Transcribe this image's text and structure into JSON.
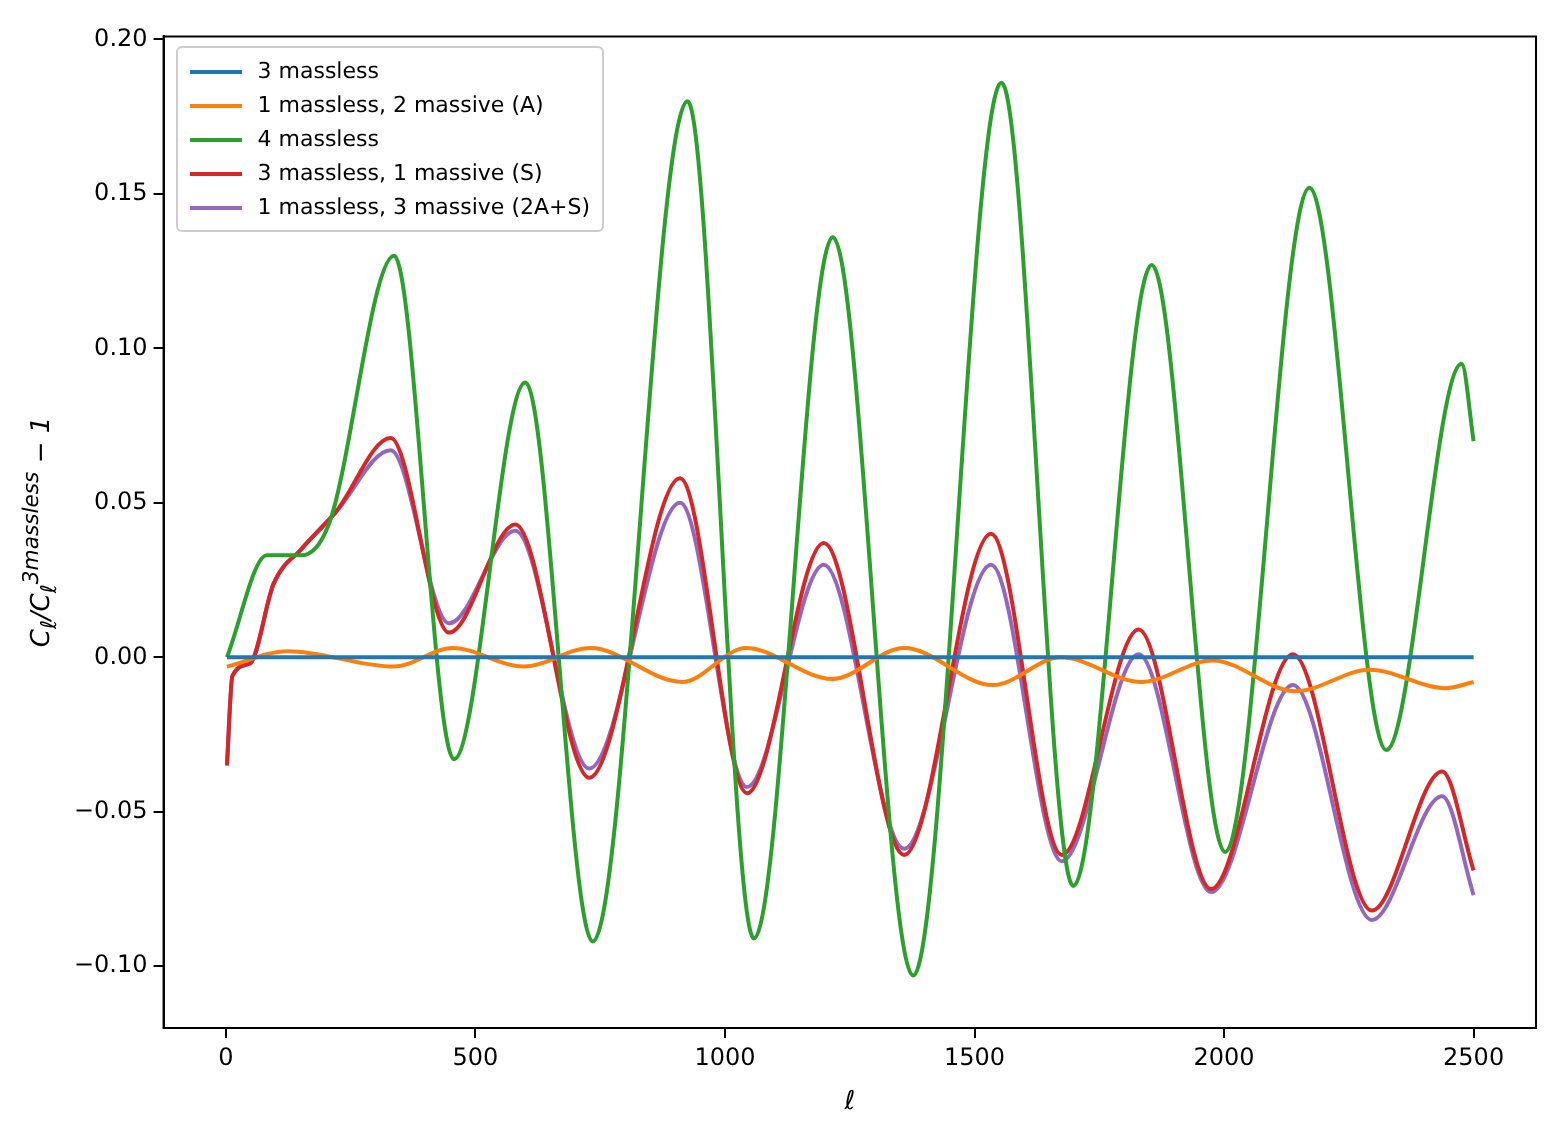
{
  "chart_data": {
    "type": "line",
    "xlabel": "ℓ",
    "ylabel": "C$_{ℓ}$/C$_{ℓ}$$^{3massless}$ − 1",
    "xlim": [
      -125,
      2625
    ],
    "ylim": [
      -0.12,
      0.201
    ],
    "xticks": [
      0,
      500,
      1000,
      1500,
      2000,
      2500
    ],
    "yticks": [
      {
        "value": -0.1,
        "label": "−0.10"
      },
      {
        "value": -0.05,
        "label": "−0.05"
      },
      {
        "value": 0,
        "label": "0.00"
      },
      {
        "value": 0.05,
        "label": "0.05"
      },
      {
        "value": 0.1,
        "label": "0.10"
      },
      {
        "value": 0.15,
        "label": "0.15"
      },
      {
        "value": 0.2,
        "label": "0.20"
      }
    ],
    "grid": false,
    "legend": "top left",
    "series": [
      {
        "name": "3 massless",
        "color": "#1f77b4",
        "x": [
          2,
          2500
        ],
        "values": [
          0,
          0
        ]
      },
      {
        "name": "1 massless, 2 massive (A)",
        "color": "#ff7f0e",
        "x": [
          2,
          124,
          337,
          454,
          597,
          730,
          914,
          1042,
          1215,
          1359,
          1537,
          1673,
          1834,
          1977,
          2143,
          2292,
          2444,
          2500
        ],
        "values": [
          -0.003,
          0.002,
          -0.003,
          0.003,
          -0.003,
          0.003,
          -0.008,
          0.003,
          -0.007,
          0.003,
          -0.009,
          0.0,
          -0.008,
          -0.001,
          -0.011,
          -0.004,
          -0.01,
          -0.008
        ]
      },
      {
        "name": "4 massless",
        "color": "#2ca02c",
        "x": [
          2,
          82,
          151,
          206,
          337,
          457,
          600,
          735,
          925,
          1058,
          1216,
          1377,
          1554,
          1698,
          1855,
          2002,
          2171,
          2325,
          2476,
          2500
        ],
        "values": [
          0.0,
          0.033,
          0.033,
          0.043,
          0.13,
          -0.033,
          0.089,
          -0.092,
          0.18,
          -0.091,
          0.136,
          -0.103,
          0.186,
          -0.074,
          0.127,
          -0.063,
          0.152,
          -0.03,
          0.095,
          0.07
        ]
      },
      {
        "name": "3 massless, 1 massive (S)",
        "color": "#d62728",
        "x": [
          2,
          13,
          48,
          96,
          151,
          220,
          330,
          447,
          580,
          728,
          910,
          1044,
          1198,
          1359,
          1533,
          1675,
          1829,
          1974,
          2138,
          2296,
          2437,
          2500
        ],
        "values": [
          -0.035,
          -0.006,
          -0.002,
          0.024,
          0.035,
          0.047,
          0.071,
          0.008,
          0.043,
          -0.039,
          0.058,
          -0.044,
          0.037,
          -0.064,
          0.04,
          -0.064,
          0.009,
          -0.075,
          0.001,
          -0.082,
          -0.037,
          -0.069
        ]
      },
      {
        "name": "1 massless, 3 massive (2A+S)",
        "color": "#9467bd",
        "x": [
          2,
          13,
          48,
          96,
          151,
          220,
          330,
          447,
          580,
          728,
          910,
          1044,
          1198,
          1359,
          1533,
          1675,
          1829,
          1974,
          2138,
          2296,
          2437,
          2500
        ],
        "values": [
          -0.035,
          -0.006,
          -0.002,
          0.024,
          0.035,
          0.047,
          0.067,
          0.011,
          0.041,
          -0.036,
          0.05,
          -0.042,
          0.03,
          -0.062,
          0.03,
          -0.066,
          0.001,
          -0.076,
          -0.009,
          -0.085,
          -0.045,
          -0.077
        ]
      }
    ]
  }
}
